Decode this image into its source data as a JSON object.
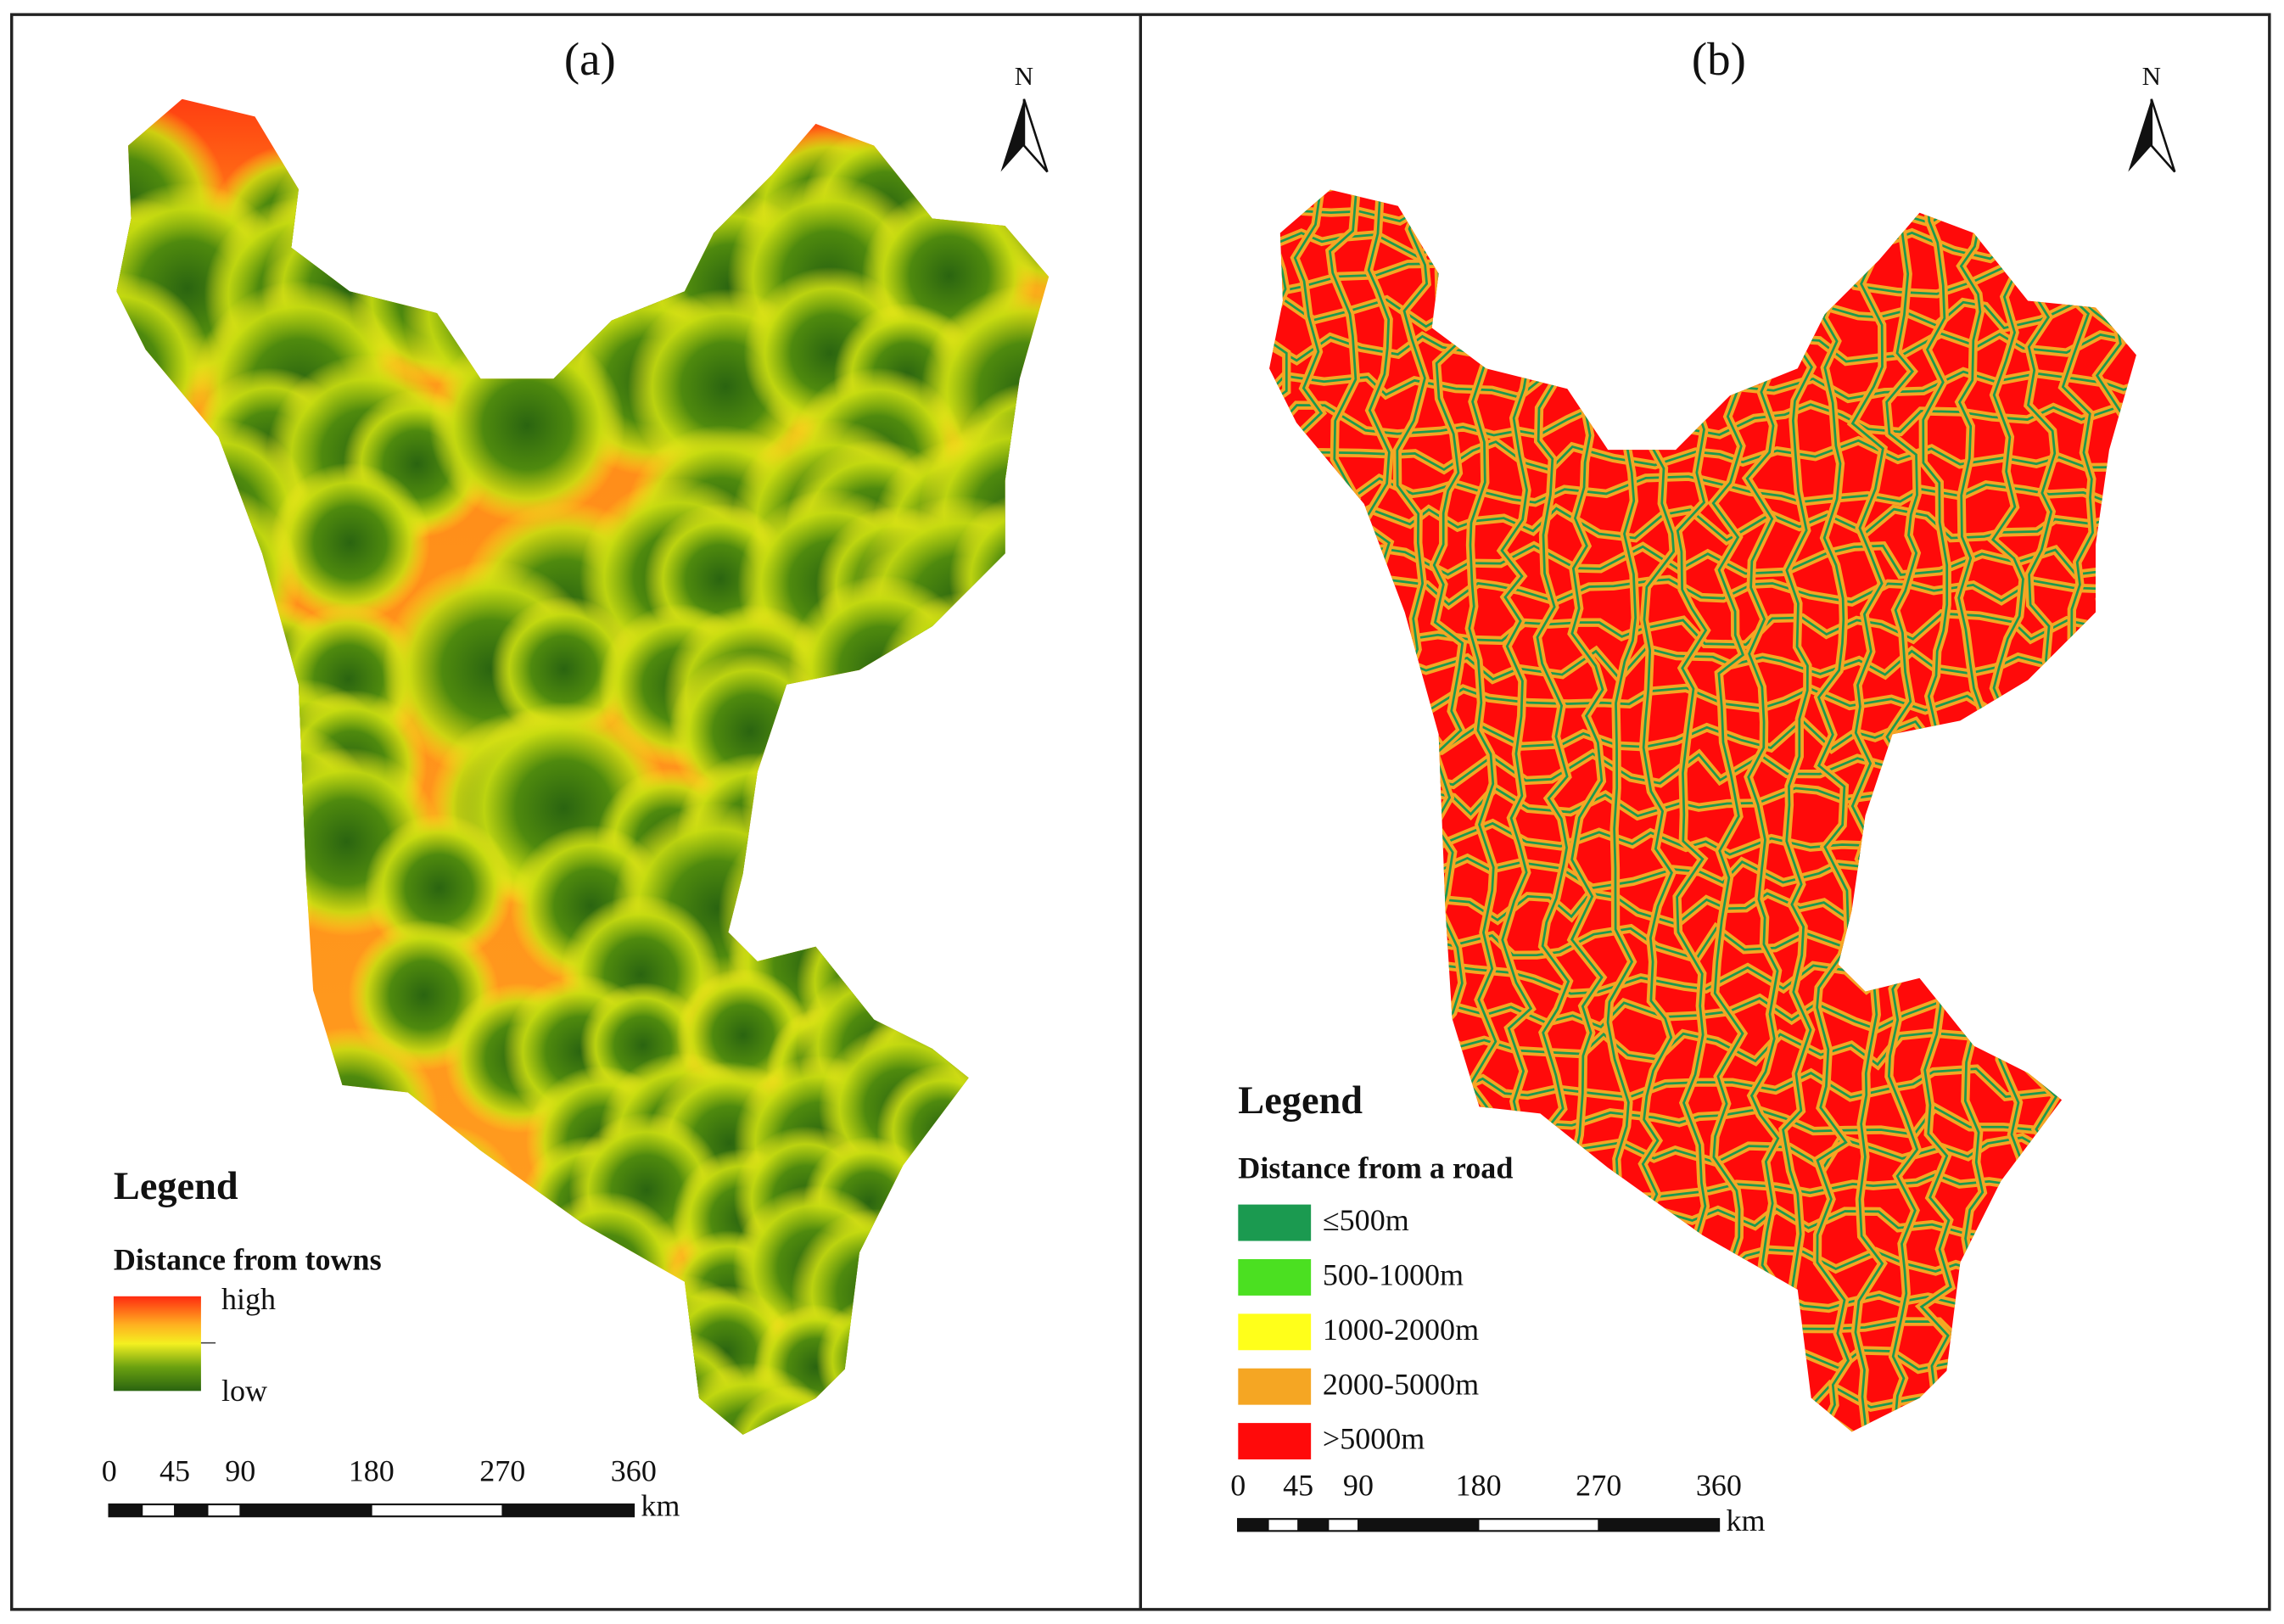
{
  "panels": [
    {
      "label": "(a)",
      "north": "N",
      "legend": {
        "heading": "Legend",
        "title": "Distance from towns",
        "high": "high",
        "low": "low"
      },
      "scale": {
        "ticks": [
          0,
          45,
          90,
          180,
          270,
          360
        ],
        "unit": "km"
      }
    },
    {
      "label": "(b)",
      "north": "N",
      "legend": {
        "heading": "Legend",
        "title": "Distance from a road",
        "items": [
          {
            "label": "≤500m",
            "color": "#1b9a50"
          },
          {
            "label": "500-1000m",
            "color": "#4be021"
          },
          {
            "label": "1000-2000m",
            "color": "#ffff1a"
          },
          {
            "label": "2000-5000m",
            "color": "#f5a623"
          },
          {
            "label": ">5000m",
            "color": "#ff0a0a"
          }
        ]
      },
      "scale": {
        "ticks": [
          0,
          45,
          90,
          180,
          270,
          360
        ],
        "unit": "km"
      }
    }
  ]
}
